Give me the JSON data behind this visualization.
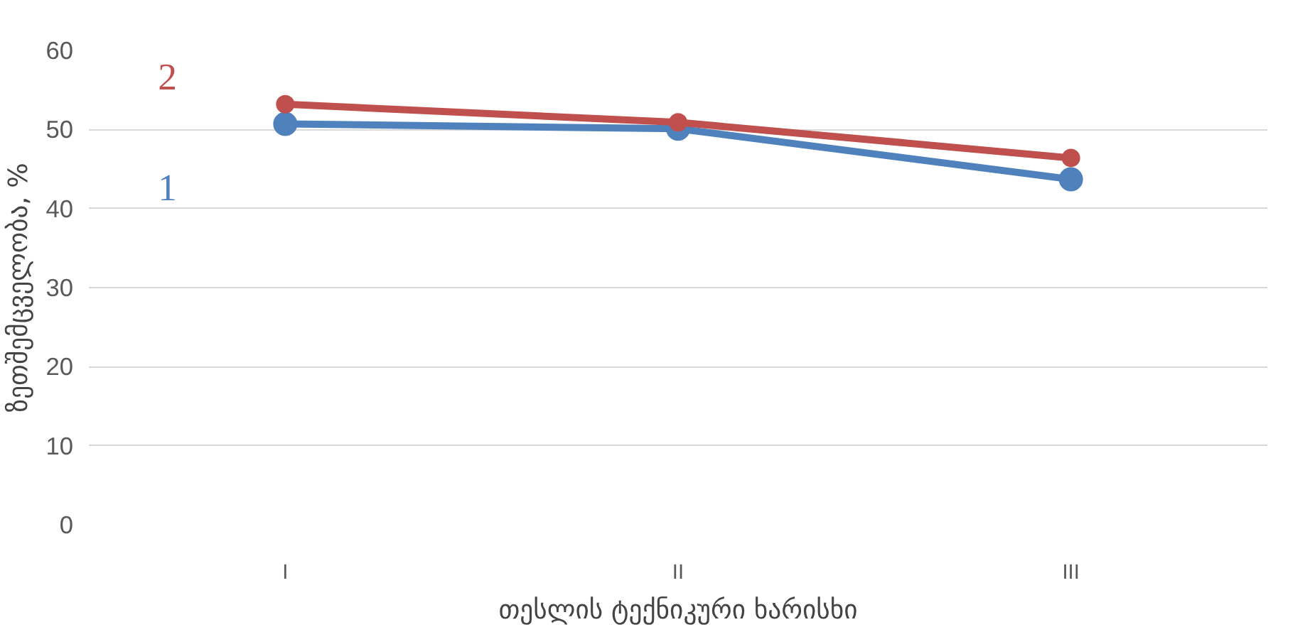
{
  "chart_data": {
    "type": "line",
    "xlabel": "თესლის ტექნიკური ხარისხი",
    "ylabel": "ზეთშემცველობა, %",
    "categories": [
      "I",
      "II",
      "III"
    ],
    "series": [
      {
        "name": "1",
        "color": "#4f81bd",
        "values": [
          50.7,
          50.1,
          43.7
        ]
      },
      {
        "name": "2",
        "color": "#c0504d",
        "values": [
          53.2,
          50.9,
          46.4
        ]
      }
    ],
    "ylim": [
      0,
      60
    ],
    "yticks": [
      0,
      10,
      20,
      30,
      40,
      50,
      60
    ],
    "grid": "y",
    "marker": "circle",
    "line_style": "solid"
  }
}
